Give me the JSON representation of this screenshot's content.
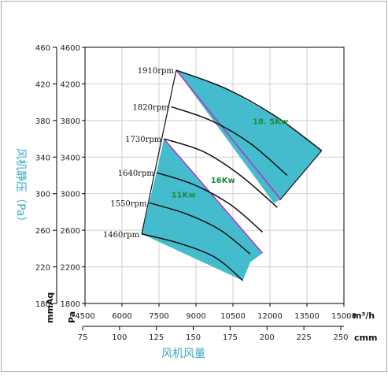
{
  "chart_data": {
    "type": "line",
    "xlabel": "风机风量",
    "ylabel": "风机静压（Pa）",
    "x_units": {
      "primary": "m³/h",
      "secondary": "cmm"
    },
    "y_units": {
      "primary": "Pa",
      "secondary": "mmAq"
    },
    "xlim": [
      4500,
      15000
    ],
    "ylim": [
      1800,
      4600
    ],
    "x_ticks": [
      4500,
      6000,
      7500,
      9000,
      10500,
      12000,
      13500,
      15000
    ],
    "x_tick_labels": [
      "4500",
      "6000",
      "7500",
      "9000",
      "10500",
      "12000",
      "13500",
      "15000"
    ],
    "x2_ticks": [
      75,
      100,
      125,
      150,
      175,
      200,
      225,
      250
    ],
    "x2_tick_labels": [
      "75",
      "100",
      "125",
      "150",
      "175",
      "200",
      "225",
      "250"
    ],
    "y_ticks": [
      1800,
      2200,
      2600,
      3000,
      3400,
      3800,
      4200,
      4600
    ],
    "y_tick_labels": [
      "1800",
      "2200",
      "2600",
      "3000",
      "3400",
      "3800",
      "4200",
      "4600"
    ],
    "y2_ticks": [
      180,
      220,
      260,
      300,
      340,
      380,
      420,
      460
    ],
    "y2_tick_labels": [
      "180",
      "220",
      "260",
      "300",
      "340",
      "380",
      "420",
      "460"
    ],
    "grid": true,
    "series": [
      {
        "name": "1910rpm",
        "x": [
          8200,
          10200,
          12200,
          14100
        ],
        "y": [
          4350,
          4150,
          3850,
          3470
        ]
      },
      {
        "name": "1820rpm",
        "x": [
          8000,
          9600,
          11200,
          12700
        ],
        "y": [
          3950,
          3800,
          3550,
          3200
        ]
      },
      {
        "name": "1730rpm",
        "x": [
          7700,
          9300,
          10800,
          12300
        ],
        "y": [
          3600,
          3460,
          3200,
          2850
        ]
      },
      {
        "name": "1640rpm",
        "x": [
          7400,
          8900,
          10400,
          11700
        ],
        "y": [
          3230,
          3100,
          2880,
          2580
        ]
      },
      {
        "name": "1550rpm",
        "x": [
          7100,
          8600,
          10000,
          11200
        ],
        "y": [
          2900,
          2780,
          2600,
          2340
        ]
      },
      {
        "name": "1460rpm",
        "x": [
          6800,
          8300,
          9800,
          10900
        ],
        "y": [
          2560,
          2460,
          2300,
          2050
        ]
      }
    ],
    "power_regions": [
      {
        "label": "11Kw",
        "x": [
          6800,
          7100,
          7400,
          7700,
          11700,
          11200,
          10900
        ],
        "y": [
          2560,
          2900,
          3230,
          3600,
          2350,
          2250,
          2050
        ],
        "label_at": [
          8000,
          2960
        ]
      },
      {
        "label": "16Kw",
        "label_at": [
          9600,
          3120
        ]
      },
      {
        "label": "18. 5Kw",
        "x": [
          8200,
          10200,
          12200,
          14100,
          12400,
          12150
        ],
        "y": [
          4350,
          4150,
          3850,
          3470,
          2930,
          2900
        ],
        "label_at": [
          11300,
          3760
        ]
      }
    ],
    "boundary_lines": [
      {
        "x": [
          7700,
          11700
        ],
        "y": [
          3600,
          2350
        ]
      },
      {
        "x": [
          8200,
          12400
        ],
        "y": [
          4350,
          2950
        ]
      }
    ],
    "envelope_left": {
      "x": [
        6800,
        8200
      ],
      "y": [
        2560,
        4350
      ]
    }
  },
  "colors": {
    "fill": "#45bccd",
    "grid": "#cfcfcf",
    "curve": "#111111",
    "edge": "#c026c0",
    "border": "#a9a9a9"
  }
}
